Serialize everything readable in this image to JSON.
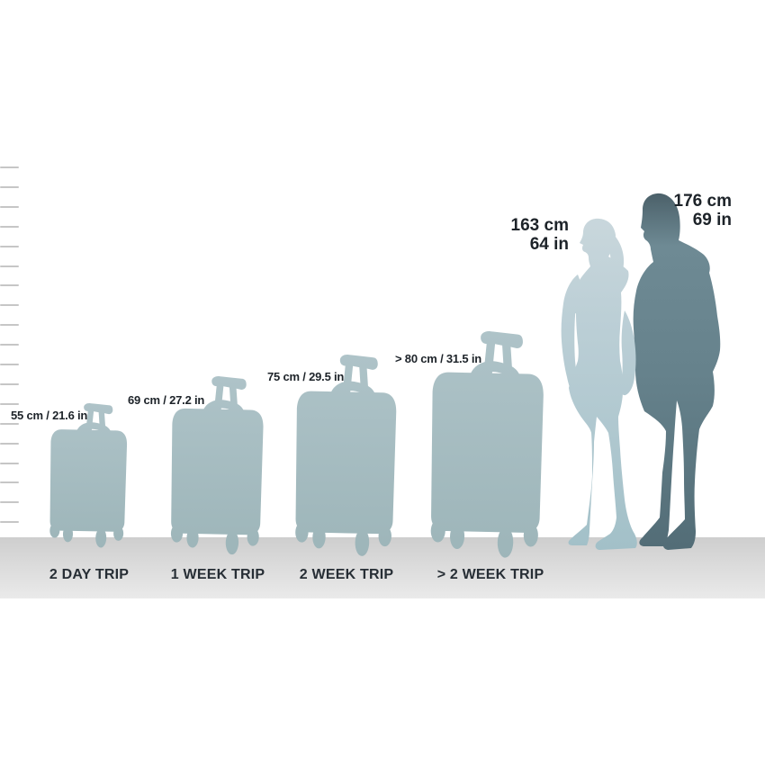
{
  "ruler": {
    "tick_count": 21
  },
  "suitcases": [
    {
      "id": "2day",
      "size_label": "55 cm / 21.6 in",
      "trip_label": "2 DAY TRIP"
    },
    {
      "id": "1week",
      "size_label": "69 cm / 27.2 in",
      "trip_label": "1 WEEK TRIP"
    },
    {
      "id": "2week",
      "size_label": "75 cm / 29.5 in",
      "trip_label": "2 WEEK TRIP"
    },
    {
      "id": "2weekplus",
      "size_label": "> 80 cm / 31.5 in",
      "trip_label": "> 2 WEEK TRIP"
    }
  ],
  "people": [
    {
      "id": "woman",
      "height_metric": "163 cm",
      "height_imperial": "64 in"
    },
    {
      "id": "man",
      "height_metric": "176 cm",
      "height_imperial": "69 in"
    }
  ],
  "colors": {
    "suitcase_top": "#aec3c8",
    "suitcase_bottom": "#9db5b9",
    "woman_top": "#c9d7dc",
    "woman_mid": "#bccfd6",
    "woman_bottom": "#a2c0c8",
    "man_head": "#4a5f68",
    "man_shoulder": "#6e8a94",
    "man_mid": "#66828c",
    "man_bottom": "#526c76",
    "floor_top": "#cecece",
    "floor_bottom": "#eaeaea",
    "tick": "#c6c6c6",
    "text": "#1d2329"
  }
}
